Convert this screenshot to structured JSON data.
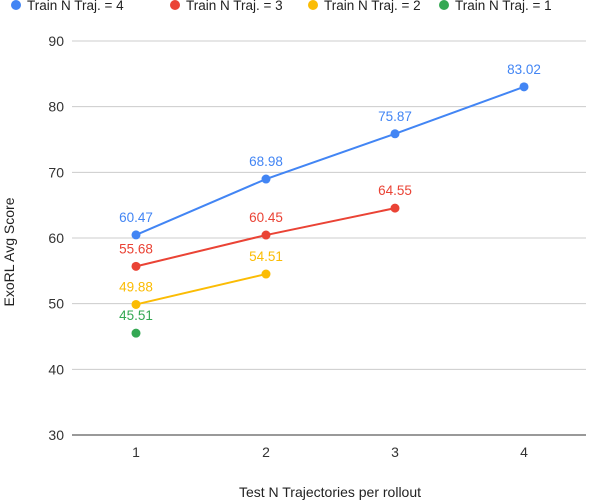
{
  "chart_data": {
    "type": "line",
    "title": "",
    "xlabel": "Test N Trajectories per rollout",
    "ylabel": "ExoRL Avg Score",
    "x": [
      1,
      2,
      3,
      4
    ],
    "x_tick_labels": [
      "1",
      "2",
      "3",
      "4"
    ],
    "ylim": [
      30,
      90
    ],
    "y_ticks": [
      30,
      40,
      50,
      60,
      70,
      80,
      90
    ],
    "grid": true,
    "legend_position": "top",
    "series": [
      {
        "name": "Train N Traj. = 4",
        "color": "#4285F4",
        "x": [
          1,
          2,
          3,
          4
        ],
        "values": [
          60.47,
          68.98,
          75.87,
          83.02
        ],
        "labels": [
          "60.47",
          "68.98",
          "75.87",
          "83.02"
        ]
      },
      {
        "name": "Train N Traj. = 3",
        "color": "#EA4335",
        "x": [
          1,
          2,
          3
        ],
        "values": [
          55.68,
          60.45,
          64.55
        ],
        "labels": [
          "55.68",
          "60.45",
          "64.55"
        ]
      },
      {
        "name": "Train N Traj. = 2",
        "color": "#FBBC04",
        "x": [
          1,
          2
        ],
        "values": [
          49.88,
          54.51
        ],
        "labels": [
          "49.88",
          "54.51"
        ]
      },
      {
        "name": "Train N Traj. = 1",
        "color": "#34A853",
        "x": [
          1
        ],
        "values": [
          45.51
        ],
        "labels": [
          "45.51"
        ]
      }
    ]
  }
}
